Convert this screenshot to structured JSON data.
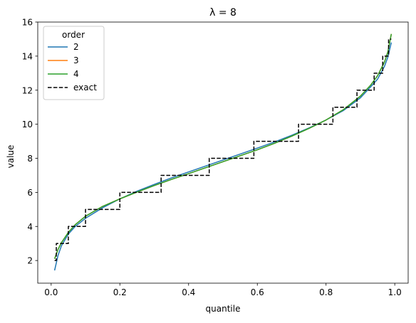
{
  "chart_data": {
    "type": "line",
    "title": "λ = 8",
    "xlabel": "quantile",
    "ylabel": "value",
    "xlim": [
      -0.039,
      1.039
    ],
    "ylim": [
      0.67,
      16
    ],
    "xticks": [
      0.0,
      0.2,
      0.4,
      0.6,
      0.8,
      1.0
    ],
    "xtick_labels": [
      "0.0",
      "0.2",
      "0.4",
      "0.6",
      "0.8",
      "1.0"
    ],
    "yticks": [
      2,
      4,
      6,
      8,
      10,
      12,
      14,
      16
    ],
    "ytick_labels": [
      "2",
      "4",
      "6",
      "8",
      "10",
      "12",
      "14",
      "16"
    ],
    "grid": false,
    "legend": {
      "title": "order",
      "position": "top-left"
    },
    "series": [
      {
        "name": "2",
        "color": "#1f77b4",
        "style": "solid",
        "x": [
          0.01,
          0.02,
          0.03,
          0.05,
          0.07,
          0.1,
          0.15,
          0.2,
          0.25,
          0.3,
          0.35,
          0.4,
          0.45,
          0.5,
          0.55,
          0.6,
          0.65,
          0.7,
          0.75,
          0.8,
          0.85,
          0.9,
          0.93,
          0.95,
          0.97,
          0.98,
          0.99
        ],
        "y": [
          1.42,
          2.3,
          2.87,
          3.55,
          4.0,
          4.48,
          5.1,
          5.62,
          6.07,
          6.47,
          6.85,
          7.2,
          7.55,
          7.9,
          8.25,
          8.6,
          8.96,
          9.35,
          9.78,
          10.25,
          10.8,
          11.55,
          12.2,
          12.65,
          13.4,
          13.95,
          14.8
        ]
      },
      {
        "name": "3",
        "color": "#ff7f0e",
        "style": "solid",
        "x": [
          0.01,
          0.02,
          0.03,
          0.05,
          0.07,
          0.1,
          0.15,
          0.2,
          0.25,
          0.3,
          0.35,
          0.4,
          0.45,
          0.5,
          0.55,
          0.6,
          0.65,
          0.7,
          0.75,
          0.8,
          0.85,
          0.9,
          0.93,
          0.95,
          0.97,
          0.98,
          0.99
        ],
        "y": [
          2.1,
          2.65,
          3.05,
          3.65,
          4.1,
          4.6,
          5.18,
          5.62,
          6.02,
          6.4,
          6.76,
          7.1,
          7.45,
          7.8,
          8.15,
          8.5,
          8.88,
          9.3,
          9.75,
          10.25,
          10.85,
          11.65,
          12.3,
          12.85,
          13.65,
          14.25,
          15.3
        ]
      },
      {
        "name": "4",
        "color": "#2ca02c",
        "style": "solid",
        "x": [
          0.01,
          0.02,
          0.03,
          0.05,
          0.07,
          0.1,
          0.15,
          0.2,
          0.25,
          0.3,
          0.35,
          0.4,
          0.45,
          0.5,
          0.55,
          0.6,
          0.65,
          0.7,
          0.75,
          0.8,
          0.85,
          0.9,
          0.93,
          0.95,
          0.97,
          0.98,
          0.99
        ],
        "y": [
          2.1,
          2.65,
          3.05,
          3.65,
          4.1,
          4.6,
          5.18,
          5.62,
          6.02,
          6.4,
          6.76,
          7.1,
          7.45,
          7.8,
          8.15,
          8.5,
          8.88,
          9.3,
          9.75,
          10.25,
          10.85,
          11.65,
          12.3,
          12.85,
          13.65,
          14.25,
          15.3
        ]
      },
      {
        "name": "exact",
        "color": "#000000",
        "style": "dashed",
        "x": [
          0.01,
          0.015,
          0.03,
          0.05,
          0.1,
          0.2,
          0.32,
          0.46,
          0.59,
          0.72,
          0.82,
          0.89,
          0.94,
          0.965,
          0.982,
          0.99
        ],
        "y": [
          2,
          3,
          3,
          4,
          5,
          6,
          7,
          8,
          9,
          10,
          11,
          12,
          13,
          14,
          15,
          15
        ],
        "drawstyle": "steps-post"
      }
    ]
  }
}
